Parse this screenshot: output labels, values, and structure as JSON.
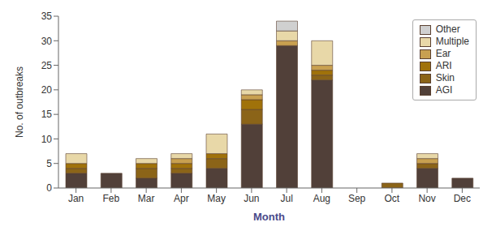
{
  "chart_data": {
    "type": "bar",
    "stacked": true,
    "categories": [
      "Jan",
      "Feb",
      "Mar",
      "Apr",
      "May",
      "Jun",
      "Jul",
      "Aug",
      "Sep",
      "Oct",
      "Nov",
      "Dec"
    ],
    "series": [
      {
        "name": "AGI",
        "color": "#514039",
        "values": [
          3,
          3,
          2,
          3,
          4,
          13,
          29,
          22,
          0,
          0,
          4,
          2
        ]
      },
      {
        "name": "Skin",
        "color": "#8B6418",
        "values": [
          1,
          0,
          2,
          1,
          2,
          3,
          0,
          1,
          0,
          1,
          1,
          0
        ]
      },
      {
        "name": "ARI",
        "color": "#A0720A",
        "values": [
          1,
          0,
          1,
          1,
          1,
          2,
          0,
          1,
          0,
          0,
          0,
          0
        ]
      },
      {
        "name": "Ear",
        "color": "#C8A050",
        "values": [
          0,
          0,
          0,
          1,
          0,
          1,
          1,
          1,
          0,
          0,
          1,
          0
        ]
      },
      {
        "name": "Multiple",
        "color": "#E8D8A8",
        "values": [
          2,
          0,
          1,
          1,
          4,
          1,
          2,
          5,
          0,
          0,
          1,
          0
        ]
      },
      {
        "name": "Other",
        "color": "#D0D0D0",
        "values": [
          0,
          0,
          0,
          0,
          0,
          0,
          2,
          0,
          0,
          0,
          0,
          0
        ]
      }
    ],
    "xlabel": "Month",
    "ylabel": "No. of outbreaks",
    "ylim": [
      0,
      35
    ],
    "yticks": [
      0,
      5,
      10,
      15,
      20,
      25,
      30,
      35
    ],
    "grid": false,
    "legend": "upper right"
  }
}
